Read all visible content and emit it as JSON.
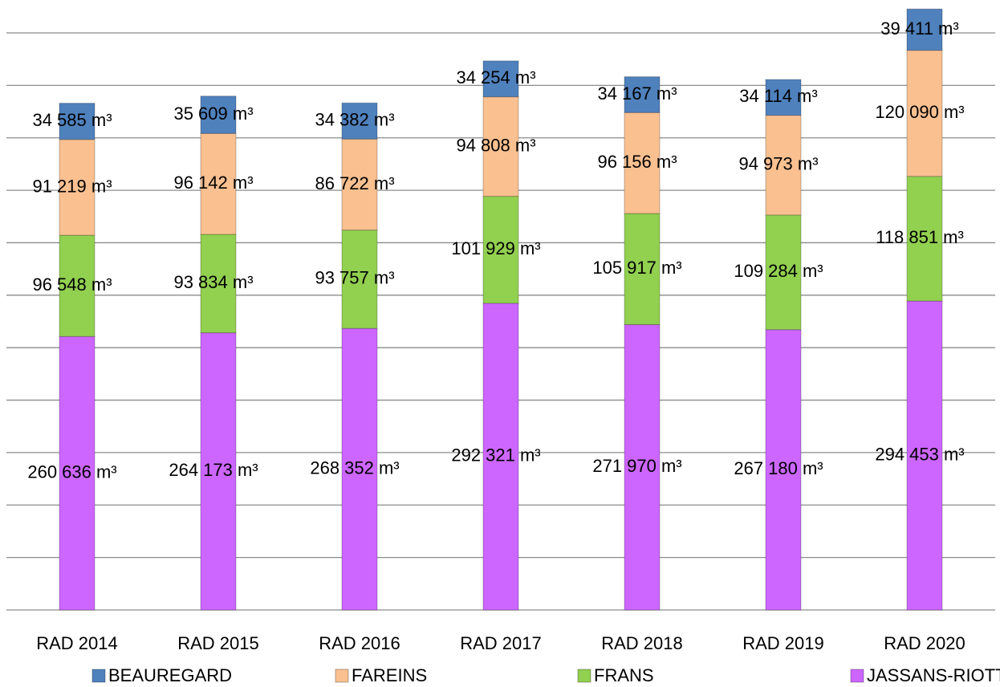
{
  "chart_data": {
    "type": "stacked_bar",
    "categories": [
      "RAD 2014",
      "RAD 2015",
      "RAD 2016",
      "RAD 2017",
      "RAD 2018",
      "RAD 2019",
      "RAD 2020"
    ],
    "series": [
      {
        "name": "BEAUREGARD",
        "color": "#4f81bd",
        "values": [
          34585,
          35609,
          34382,
          34254,
          34167,
          34114,
          39411
        ],
        "value_labels": [
          "34 585 m³",
          "35 609 m³",
          "34 382 m³",
          "34 254 m³",
          "34 167 m³",
          "34 114 m³",
          "39 411 m³"
        ]
      },
      {
        "name": "FAREINS",
        "color": "#fac090",
        "values": [
          91219,
          96142,
          86722,
          94808,
          96156,
          94973,
          120090
        ],
        "value_labels": [
          "91 219 m³",
          "96 142 m³",
          "86 722 m³",
          "94 808 m³",
          "96 156 m³",
          "94 973 m³",
          "120 090 m³"
        ]
      },
      {
        "name": "FRANS",
        "color": "#92d050",
        "values": [
          96548,
          93834,
          93757,
          101929,
          105917,
          109284,
          118851
        ],
        "value_labels": [
          "96 548 m³",
          "93 834 m³",
          "93 757 m³",
          "101 929 m³",
          "105 917 m³",
          "109 284 m³",
          "118 851 m³"
        ]
      },
      {
        "name": "JASSANS-RIOTTIER",
        "color": "#cc66ff",
        "values": [
          260636,
          264173,
          268352,
          292321,
          271970,
          267180,
          294453
        ],
        "value_labels": [
          "260 636 m³",
          "264 173 m³",
          "268 352 m³",
          "292 321 m³",
          "271 970 m³",
          "267 180 m³",
          "294 453 m³"
        ]
      }
    ],
    "ylim": [
      0,
      550000
    ],
    "yticks": [
      0,
      50000,
      100000,
      150000,
      200000,
      250000,
      300000,
      350000,
      400000,
      450000,
      500000,
      550000
    ],
    "grid": true
  }
}
